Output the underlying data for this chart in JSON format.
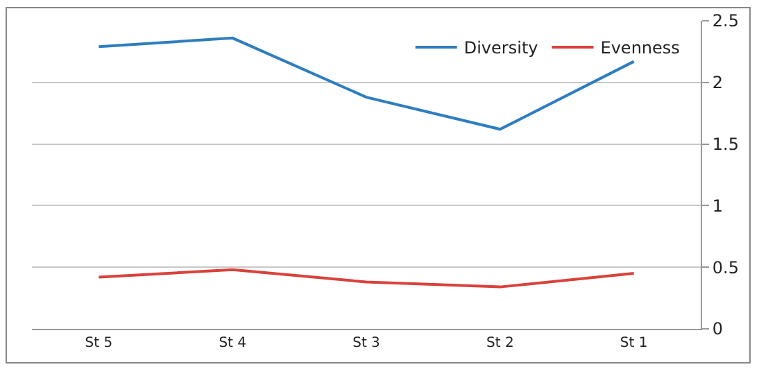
{
  "chart_data": {
    "type": "line",
    "categories": [
      "St 5",
      "St 4",
      "St 3",
      "St 2",
      "St 1"
    ],
    "series": [
      {
        "name": "Diversity",
        "color": "#2e7dbf",
        "values": [
          2.29,
          2.36,
          1.88,
          1.62,
          2.17
        ]
      },
      {
        "name": "Evenness",
        "color": "#d9423b",
        "values": [
          0.42,
          0.48,
          0.38,
          0.34,
          0.45
        ]
      }
    ],
    "ylim": [
      0,
      2.5
    ],
    "yticks": [
      0,
      0.5,
      1,
      1.5,
      2,
      2.5
    ],
    "grid": "y",
    "legend": "top right",
    "marker": "none",
    "line_style": "solid"
  }
}
